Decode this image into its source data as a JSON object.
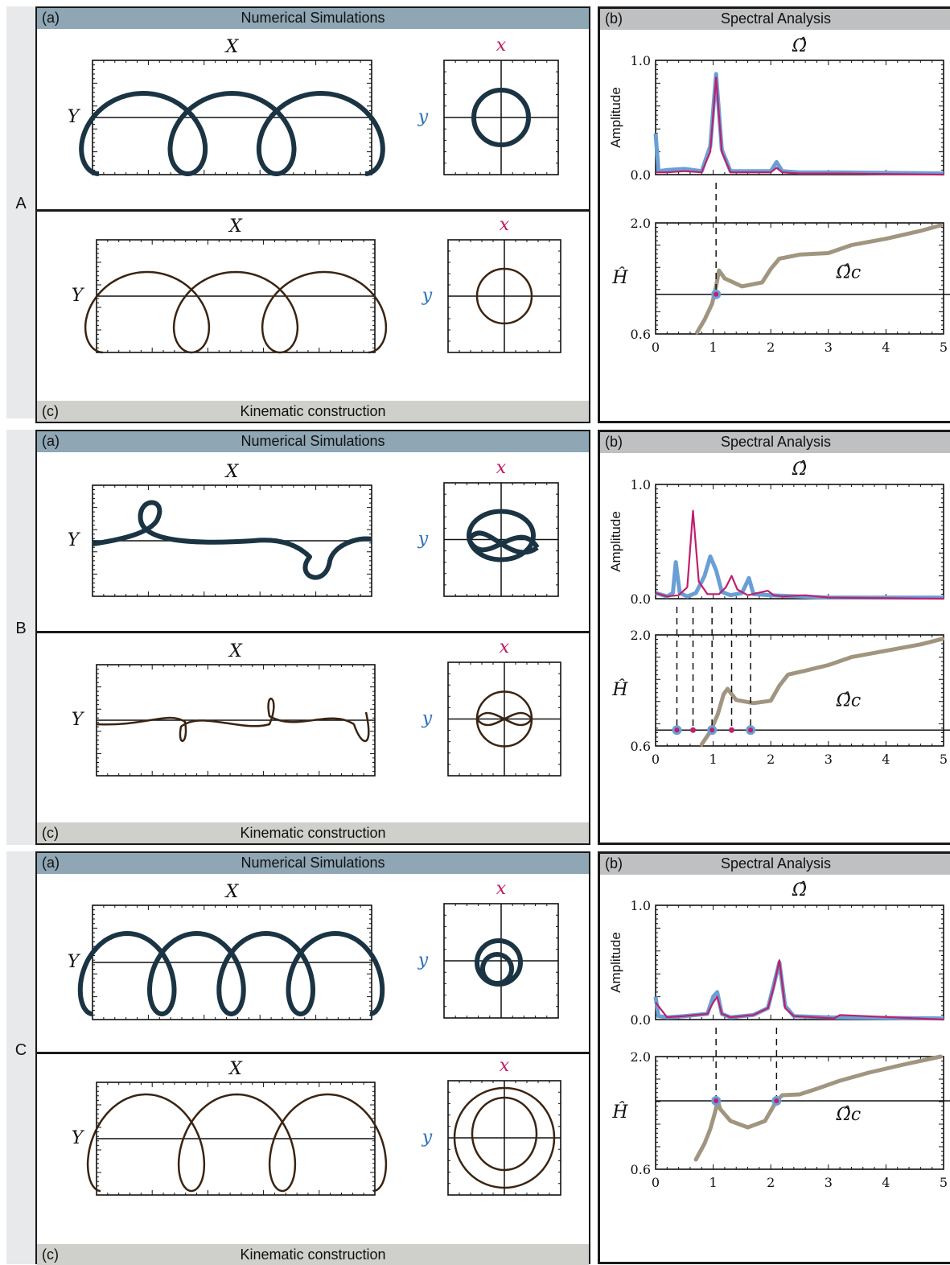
{
  "colors": {
    "sim_curve": "#1b3444",
    "kin_curve": "#3a2412",
    "header_blue": "#8fa6b4",
    "header_gray": "#bfc0c1",
    "footer_gray": "#cfd0cb",
    "spectrum_x": "#bf1f6c",
    "spectrum_y": "#6a9fd6",
    "omega_c_curve": "#a19580",
    "x_label": "#c0185f",
    "y_label": "#2a72b8"
  },
  "rows": [
    {
      "label": "A",
      "sim": {
        "tag": "(a)",
        "title": "Numerical Simulations"
      },
      "kin": {
        "tag": "(c)",
        "title": "Kinematic construction"
      },
      "spec": {
        "tag": "(b)",
        "title": "Spectral Analysis"
      }
    },
    {
      "label": "B",
      "sim": {
        "tag": "(a)",
        "title": "Numerical Simulations"
      },
      "kin": {
        "tag": "(c)",
        "title": "Kinematic construction"
      },
      "spec": {
        "tag": "(b)",
        "title": "Spectral Analysis"
      }
    },
    {
      "label": "C",
      "sim": {
        "tag": "(a)",
        "title": "Numerical Simulations"
      },
      "kin": {
        "tag": "(c)",
        "title": "Kinematic construction"
      },
      "spec": {
        "tag": "(b)",
        "title": "Spectral Analysis"
      }
    }
  ],
  "axis_labels": {
    "X": "X",
    "Y": "Y",
    "x": "x",
    "y": "y",
    "omega_hat": "Ω̂",
    "amplitude": "Amplitude",
    "H_hat": "Ĥ",
    "omega_c": "Ω̂c"
  },
  "chart_data": [
    {
      "type": "line",
      "row": "A",
      "title": "Spectral Analysis",
      "xlabel": "Ω̂",
      "ylabel": "Amplitude",
      "xlim": [
        0,
        5
      ],
      "ylim": [
        0,
        1.0
      ],
      "y_ticks": [
        "1.0",
        "0.0"
      ],
      "series": [
        {
          "key": "y_spectrum",
          "x": [
            0,
            0.05,
            0.2,
            0.5,
            0.8,
            0.95,
            1.05,
            1.15,
            1.3,
            1.6,
            2.0,
            2.1,
            2.2,
            2.5,
            3.2,
            5.0
          ],
          "y": [
            0.36,
            0.03,
            0.04,
            0.05,
            0.03,
            0.25,
            0.88,
            0.22,
            0.03,
            0.03,
            0.03,
            0.11,
            0.03,
            0.02,
            0.02,
            0.01
          ]
        },
        {
          "key": "x_spectrum",
          "x": [
            0,
            0.2,
            0.5,
            0.8,
            0.95,
            1.05,
            1.15,
            1.3,
            1.6,
            2.0,
            2.1,
            2.2,
            2.5,
            3.2,
            5.0
          ],
          "y": [
            0.02,
            0.02,
            0.03,
            0.02,
            0.2,
            0.85,
            0.2,
            0.02,
            0.02,
            0.02,
            0.06,
            0.02,
            0.01,
            0.01,
            0.0
          ]
        }
      ],
      "lower": {
        "ylabel": "Ĥ",
        "xlim": [
          0,
          5
        ],
        "ylim": [
          0.6,
          2.0
        ],
        "x_ticks": [
          "0",
          "1",
          "2",
          "3",
          "4",
          "5"
        ],
        "y_ticks": [
          "2.0",
          "0.6"
        ],
        "H": 1.1,
        "omega_c_label": "Ω̂c",
        "omega_c_curve": {
          "x": [
            0.72,
            0.85,
            0.98,
            1.05,
            1.1,
            1.2,
            1.5,
            1.85,
            2.0,
            2.15,
            2.5,
            3.0,
            3.4,
            4.0,
            4.6,
            4.95
          ],
          "y": [
            0.62,
            0.78,
            0.98,
            1.2,
            1.4,
            1.3,
            1.2,
            1.25,
            1.42,
            1.55,
            1.6,
            1.62,
            1.72,
            1.8,
            1.9,
            1.97
          ]
        },
        "markers": [
          {
            "x": 1.05,
            "kind": "big"
          }
        ],
        "dashes": [
          1.05
        ]
      }
    },
    {
      "type": "line",
      "row": "B",
      "title": "Spectral Analysis",
      "xlabel": "Ω̂",
      "ylabel": "Amplitude",
      "xlim": [
        0,
        5
      ],
      "ylim": [
        0,
        1.0
      ],
      "y_ticks": [
        "1.0",
        "0.0"
      ],
      "series": [
        {
          "key": "y_spectrum",
          "x": [
            0,
            0.2,
            0.3,
            0.35,
            0.42,
            0.55,
            0.7,
            0.85,
            0.95,
            1.05,
            1.15,
            1.3,
            1.5,
            1.62,
            1.7,
            2.0,
            2.5,
            3.0,
            5.0
          ],
          "y": [
            0.05,
            0.02,
            0.05,
            0.32,
            0.05,
            0.02,
            0.05,
            0.2,
            0.37,
            0.25,
            0.06,
            0.03,
            0.05,
            0.18,
            0.04,
            0.03,
            0.02,
            0.01,
            0.01
          ]
        },
        {
          "key": "x_spectrum",
          "x": [
            0,
            0.2,
            0.4,
            0.55,
            0.65,
            0.75,
            0.9,
            1.1,
            1.22,
            1.32,
            1.42,
            1.6,
            1.95,
            2.05,
            2.2,
            2.6,
            3.0,
            5.0
          ],
          "y": [
            0.05,
            0.02,
            0.03,
            0.1,
            0.77,
            0.15,
            0.04,
            0.04,
            0.1,
            0.2,
            0.08,
            0.03,
            0.07,
            0.03,
            0.02,
            0.03,
            0.01,
            0.0
          ]
        }
      ],
      "lower": {
        "ylabel": "Ĥ",
        "xlim": [
          0,
          5
        ],
        "ylim": [
          0.6,
          2.0
        ],
        "x_ticks": [
          "0",
          "1",
          "2",
          "3",
          "4",
          "5"
        ],
        "y_ticks": [
          "2.0",
          "0.6"
        ],
        "H": 0.8,
        "omega_c_label": "Ω̂c",
        "omega_c_curve": {
          "x": [
            0.8,
            0.95,
            1.08,
            1.18,
            1.25,
            1.4,
            1.7,
            2.0,
            2.15,
            2.3,
            2.6,
            3.0,
            3.4,
            4.0,
            4.6,
            4.98
          ],
          "y": [
            0.62,
            0.78,
            1.0,
            1.25,
            1.32,
            1.18,
            1.14,
            1.17,
            1.36,
            1.5,
            1.55,
            1.62,
            1.72,
            1.8,
            1.88,
            1.95
          ]
        },
        "markers": [
          {
            "x": 0.37,
            "kind": "big"
          },
          {
            "x": 0.65,
            "kind": "small"
          },
          {
            "x": 0.98,
            "kind": "big"
          },
          {
            "x": 1.32,
            "kind": "small"
          },
          {
            "x": 1.65,
            "kind": "big"
          }
        ],
        "dashes": [
          0.37,
          0.65,
          0.98,
          1.32,
          1.65
        ]
      }
    },
    {
      "type": "line",
      "row": "C",
      "title": "Spectral Analysis",
      "xlabel": "Ω̂",
      "ylabel": "Amplitude",
      "xlim": [
        0,
        5
      ],
      "ylim": [
        0,
        1.0
      ],
      "y_ticks": [
        "1.0",
        "0.0"
      ],
      "series": [
        {
          "key": "y_spectrum",
          "x": [
            0,
            0.05,
            0.2,
            0.5,
            0.9,
            1.0,
            1.07,
            1.15,
            1.3,
            1.7,
            1.95,
            2.05,
            2.15,
            2.25,
            2.4,
            3.0,
            5.0
          ],
          "y": [
            0.2,
            0.03,
            0.02,
            0.03,
            0.05,
            0.2,
            0.24,
            0.05,
            0.02,
            0.04,
            0.1,
            0.3,
            0.5,
            0.12,
            0.03,
            0.02,
            0.01
          ]
        },
        {
          "key": "x_spectrum",
          "x": [
            0,
            0.2,
            0.5,
            0.9,
            1.0,
            1.07,
            1.15,
            1.3,
            1.7,
            1.95,
            2.05,
            2.15,
            2.25,
            2.4,
            3.1,
            3.2,
            5.0
          ],
          "y": [
            0.15,
            0.02,
            0.03,
            0.05,
            0.15,
            0.2,
            0.05,
            0.02,
            0.04,
            0.1,
            0.28,
            0.52,
            0.1,
            0.03,
            0.01,
            0.04,
            0.0
          ]
        }
      ],
      "lower": {
        "ylabel": "Ĥ",
        "xlim": [
          0,
          5
        ],
        "ylim": [
          0.6,
          2.0
        ],
        "x_ticks": [
          "0",
          "1",
          "2",
          "3",
          "4",
          "5"
        ],
        "y_ticks": [
          "2.0",
          "0.6"
        ],
        "H": 1.45,
        "omega_c_label": "Ω̂c",
        "omega_c_curve": {
          "x": [
            0.7,
            0.85,
            0.95,
            1.03,
            1.08,
            1.12,
            1.3,
            1.6,
            1.9,
            2.1,
            2.2,
            2.5,
            2.8,
            3.2,
            3.7,
            4.3,
            4.95
          ],
          "y": [
            0.72,
            0.92,
            1.1,
            1.3,
            1.45,
            1.35,
            1.2,
            1.12,
            1.2,
            1.45,
            1.52,
            1.53,
            1.6,
            1.7,
            1.8,
            1.9,
            2.0
          ]
        },
        "markers": [
          {
            "x": 1.05,
            "kind": "big"
          },
          {
            "x": 2.1,
            "kind": "big"
          }
        ],
        "dashes": [
          1.05,
          2.1
        ]
      }
    }
  ]
}
